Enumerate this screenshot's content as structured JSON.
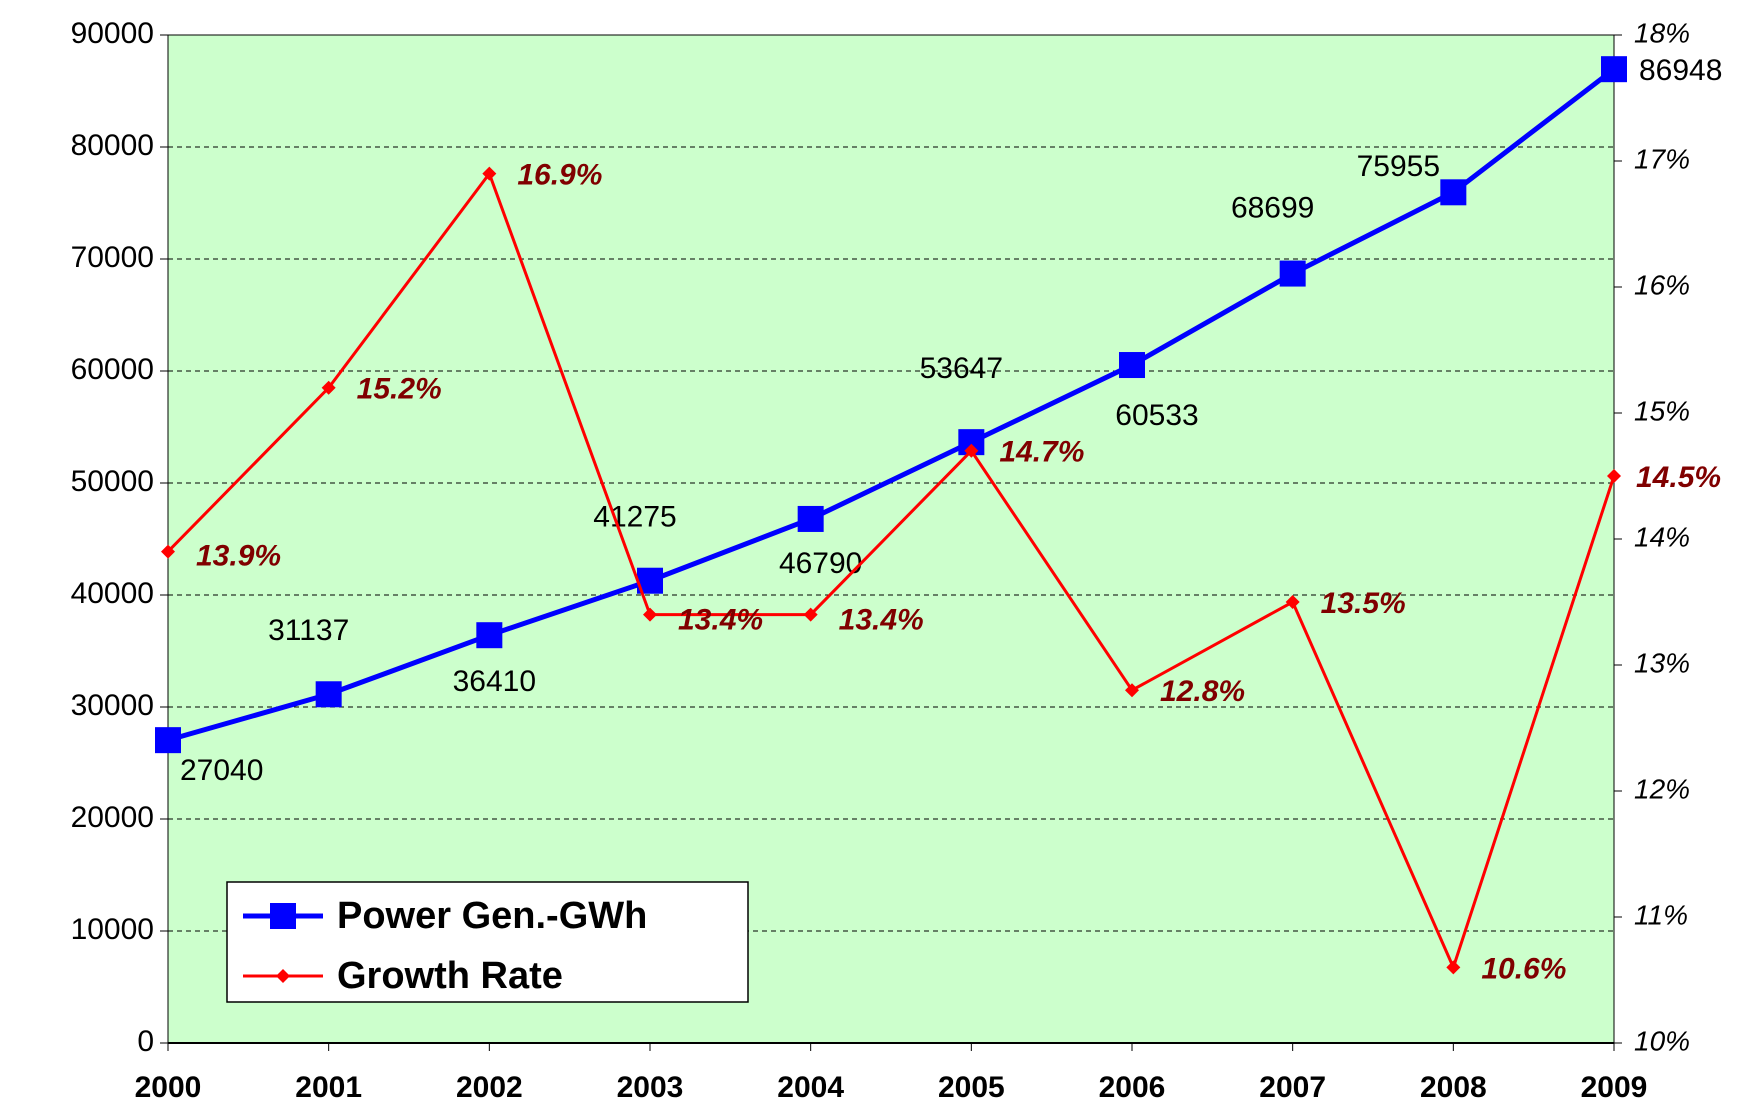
{
  "chart_data": {
    "type": "line",
    "categories": [
      "2000",
      "2001",
      "2002",
      "2003",
      "2004",
      "2005",
      "2006",
      "2007",
      "2008",
      "2009"
    ],
    "series": [
      {
        "name": "Power Gen.-GWh",
        "color": "#0000ff",
        "values": [
          27040,
          31137,
          36410,
          41275,
          46790,
          53647,
          60533,
          68699,
          75955,
          86948
        ]
      },
      {
        "name": "Growth Rate",
        "color": "#ff0000",
        "axis": "y2",
        "values": [
          13.9,
          15.2,
          16.9,
          13.4,
          13.4,
          14.7,
          12.8,
          13.5,
          10.6,
          14.5
        ],
        "value_labels": [
          "13.9%",
          "15.2%",
          "16.9%",
          "13.4%",
          "13.4%",
          "14.7%",
          "12.8%",
          "13.5%",
          "10.6%",
          "14.5%"
        ]
      }
    ],
    "ylim": [
      0,
      90000
    ],
    "yticks": [
      0,
      10000,
      20000,
      30000,
      40000,
      50000,
      60000,
      70000,
      80000,
      90000
    ],
    "y2lim": [
      10,
      18
    ],
    "y2ticks": [
      {
        "value": 10,
        "label": "10%"
      },
      {
        "value": 11,
        "label": "11%"
      },
      {
        "value": 12,
        "label": "12%"
      },
      {
        "value": 13,
        "label": "13%"
      },
      {
        "value": 14,
        "label": "14%"
      },
      {
        "value": 15,
        "label": "15%"
      },
      {
        "value": 16,
        "label": "16%"
      },
      {
        "value": 17,
        "label": "17%"
      },
      {
        "value": 18,
        "label": "18%"
      }
    ],
    "grid": true,
    "legend": "lower left",
    "background": "#ccffcc"
  }
}
